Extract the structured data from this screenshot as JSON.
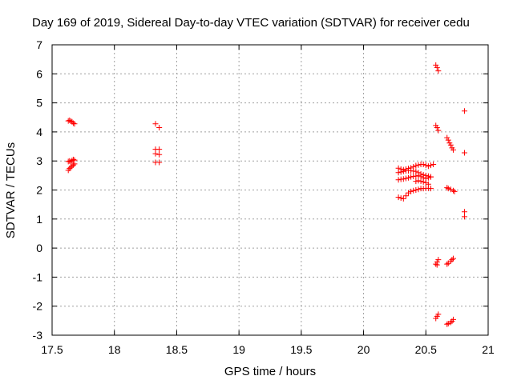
{
  "chart_data": {
    "type": "scatter",
    "title": "Day 169 of 2019, Sidereal Day-to-day VTEC variation (SDTVAR) for receiver cedu",
    "xlabel": "GPS time / hours",
    "ylabel": "SDTVAR / TECUs",
    "xlim": [
      17.5,
      21
    ],
    "ylim": [
      -3,
      7
    ],
    "xticks": [
      "17.5",
      "18",
      "18.5",
      "19",
      "19.5",
      "20",
      "20.5",
      "21"
    ],
    "yticks": [
      "-3",
      "-2",
      "-1",
      "0",
      "1",
      "2",
      "3",
      "4",
      "5",
      "6",
      "7"
    ],
    "grid": true,
    "marker": "+",
    "color": "#ff0000",
    "series": [
      {
        "name": "SDTVAR",
        "points": [
          [
            17.63,
            4.38
          ],
          [
            17.64,
            4.4
          ],
          [
            17.65,
            4.37
          ],
          [
            17.66,
            4.35
          ],
          [
            17.67,
            4.3
          ],
          [
            17.68,
            4.28
          ],
          [
            17.63,
            2.98
          ],
          [
            17.64,
            3.0
          ],
          [
            17.65,
            2.97
          ],
          [
            17.66,
            3.02
          ],
          [
            17.67,
            3.05
          ],
          [
            17.68,
            3.03
          ],
          [
            17.63,
            2.68
          ],
          [
            17.64,
            2.74
          ],
          [
            17.65,
            2.78
          ],
          [
            17.66,
            2.82
          ],
          [
            17.67,
            2.86
          ],
          [
            17.68,
            2.9
          ],
          [
            18.33,
            4.28
          ],
          [
            18.36,
            4.15
          ],
          [
            18.33,
            3.4
          ],
          [
            18.36,
            3.4
          ],
          [
            18.33,
            3.25
          ],
          [
            18.36,
            3.22
          ],
          [
            18.33,
            2.95
          ],
          [
            18.36,
            2.95
          ],
          [
            20.28,
            1.75
          ],
          [
            20.3,
            1.72
          ],
          [
            20.32,
            1.7
          ],
          [
            20.34,
            1.8
          ],
          [
            20.36,
            1.9
          ],
          [
            20.38,
            1.95
          ],
          [
            20.4,
            1.98
          ],
          [
            20.42,
            2.0
          ],
          [
            20.44,
            2.02
          ],
          [
            20.46,
            2.05
          ],
          [
            20.48,
            2.05
          ],
          [
            20.5,
            2.06
          ],
          [
            20.52,
            2.06
          ],
          [
            20.54,
            2.05
          ],
          [
            20.28,
            2.35
          ],
          [
            20.3,
            2.37
          ],
          [
            20.32,
            2.38
          ],
          [
            20.34,
            2.4
          ],
          [
            20.36,
            2.42
          ],
          [
            20.38,
            2.45
          ],
          [
            20.4,
            2.47
          ],
          [
            20.42,
            2.48
          ],
          [
            20.44,
            2.5
          ],
          [
            20.46,
            2.46
          ],
          [
            20.48,
            2.42
          ],
          [
            20.5,
            2.4
          ],
          [
            20.52,
            2.42
          ],
          [
            20.54,
            2.45
          ],
          [
            20.28,
            2.6
          ],
          [
            20.3,
            2.62
          ],
          [
            20.32,
            2.64
          ],
          [
            20.34,
            2.66
          ],
          [
            20.36,
            2.66
          ],
          [
            20.38,
            2.66
          ],
          [
            20.4,
            2.65
          ],
          [
            20.42,
            2.64
          ],
          [
            20.44,
            2.6
          ],
          [
            20.46,
            2.55
          ],
          [
            20.48,
            2.52
          ],
          [
            20.5,
            2.5
          ],
          [
            20.52,
            2.48
          ],
          [
            20.54,
            2.45
          ],
          [
            20.28,
            2.75
          ],
          [
            20.3,
            2.72
          ],
          [
            20.32,
            2.7
          ],
          [
            20.34,
            2.72
          ],
          [
            20.36,
            2.74
          ],
          [
            20.38,
            2.76
          ],
          [
            20.4,
            2.8
          ],
          [
            20.42,
            2.84
          ],
          [
            20.44,
            2.86
          ],
          [
            20.46,
            2.88
          ],
          [
            20.48,
            2.88
          ],
          [
            20.5,
            2.85
          ],
          [
            20.52,
            2.82
          ],
          [
            20.54,
            2.85
          ],
          [
            20.56,
            2.88
          ],
          [
            20.42,
            2.3
          ],
          [
            20.44,
            2.32
          ],
          [
            20.46,
            2.3
          ],
          [
            20.48,
            2.28
          ],
          [
            20.5,
            2.25
          ],
          [
            20.52,
            2.2
          ],
          [
            20.58,
            6.3
          ],
          [
            20.59,
            6.22
          ],
          [
            20.6,
            6.1
          ],
          [
            20.58,
            4.22
          ],
          [
            20.59,
            4.15
          ],
          [
            20.6,
            4.05
          ],
          [
            20.67,
            3.8
          ],
          [
            20.68,
            3.72
          ],
          [
            20.69,
            3.62
          ],
          [
            20.7,
            3.55
          ],
          [
            20.71,
            3.45
          ],
          [
            20.72,
            3.38
          ],
          [
            20.67,
            2.08
          ],
          [
            20.68,
            2.05
          ],
          [
            20.7,
            2.02
          ],
          [
            20.72,
            1.98
          ],
          [
            20.73,
            1.95
          ],
          [
            20.81,
            4.72
          ],
          [
            20.81,
            3.28
          ],
          [
            20.81,
            1.25
          ],
          [
            20.81,
            1.08
          ],
          [
            20.58,
            -0.55
          ],
          [
            20.59,
            -0.48
          ],
          [
            20.6,
            -0.4
          ],
          [
            20.59,
            -0.58
          ],
          [
            20.67,
            -0.55
          ],
          [
            20.68,
            -0.52
          ],
          [
            20.7,
            -0.45
          ],
          [
            20.71,
            -0.4
          ],
          [
            20.72,
            -0.36
          ],
          [
            20.58,
            -2.42
          ],
          [
            20.59,
            -2.35
          ],
          [
            20.6,
            -2.28
          ],
          [
            20.67,
            -2.62
          ],
          [
            20.68,
            -2.6
          ],
          [
            20.7,
            -2.56
          ],
          [
            20.71,
            -2.52
          ],
          [
            20.72,
            -2.46
          ]
        ]
      }
    ]
  }
}
